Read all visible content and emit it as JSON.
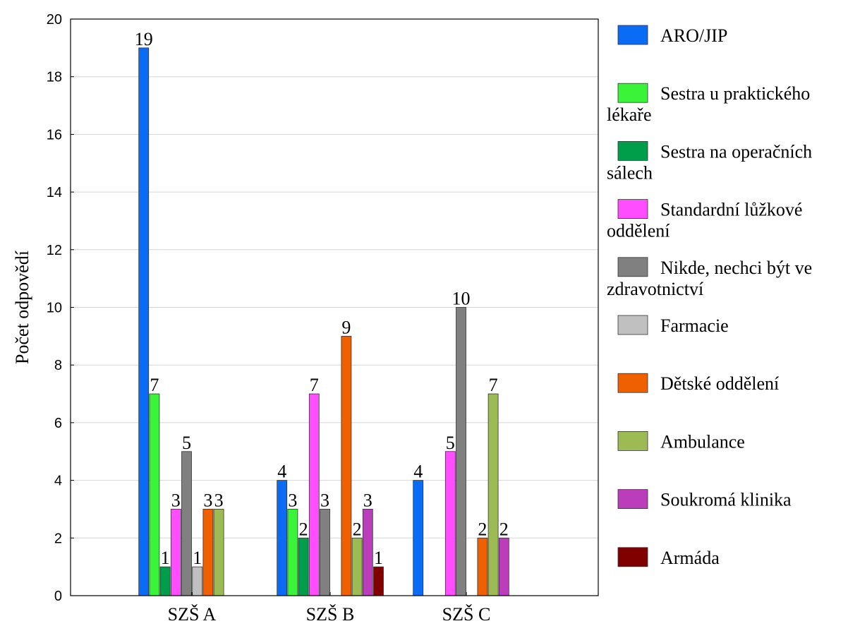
{
  "chart_data": {
    "type": "bar",
    "title": "",
    "xlabel": "",
    "ylabel": "Počet odpovědí",
    "ylim": [
      0,
      20
    ],
    "yticks": [
      0,
      2,
      4,
      6,
      8,
      10,
      12,
      14,
      16,
      18,
      20
    ],
    "grid": true,
    "legend_position": "right",
    "categories": [
      "SZŠ A",
      "SZŠ B",
      "SZŠ C"
    ],
    "series": [
      {
        "name": "ARO/JIP",
        "legend_lines": [
          "ARO/JIP"
        ],
        "color": "#0a6cf4",
        "values": [
          19,
          4,
          4
        ]
      },
      {
        "name": "Sestra u praktického lékaře",
        "legend_lines": [
          "Sestra u praktického",
          "lékaře"
        ],
        "color": "#3af43a",
        "values": [
          7,
          3,
          null
        ]
      },
      {
        "name": "Sestra na operačních sálech",
        "legend_lines": [
          "Sestra na operačních",
          "sálech"
        ],
        "color": "#009e4a",
        "values": [
          1,
          2,
          null
        ]
      },
      {
        "name": "Standardní lůžkové oddělení",
        "legend_lines": [
          "Standardní lůžkové",
          "oddělení"
        ],
        "color": "#ff4dff",
        "values": [
          3,
          7,
          5
        ]
      },
      {
        "name": "Nikde, nechci být ve zdravotnictví",
        "legend_lines": [
          "Nikde, nechci být ve",
          "zdravotnictví"
        ],
        "color": "#808080",
        "values": [
          5,
          3,
          10
        ]
      },
      {
        "name": "Farmacie",
        "legend_lines": [
          "Farmacie"
        ],
        "color": "#c0c0c0",
        "values": [
          1,
          null,
          null
        ]
      },
      {
        "name": "Dětské oddělení",
        "legend_lines": [
          "Dětské oddělení"
        ],
        "color": "#ef6000",
        "values": [
          3,
          9,
          2
        ]
      },
      {
        "name": "Ambulance",
        "legend_lines": [
          "Ambulance"
        ],
        "color": "#9dbb55",
        "values": [
          3,
          2,
          7
        ]
      },
      {
        "name": "Soukromá klinika",
        "legend_lines": [
          "Soukromá klinika"
        ],
        "color": "#bb3dbb",
        "values": [
          null,
          3,
          2
        ]
      },
      {
        "name": "Armáda",
        "legend_lines": [
          "Armáda"
        ],
        "color": "#800000",
        "values": [
          null,
          1,
          null
        ]
      }
    ]
  }
}
